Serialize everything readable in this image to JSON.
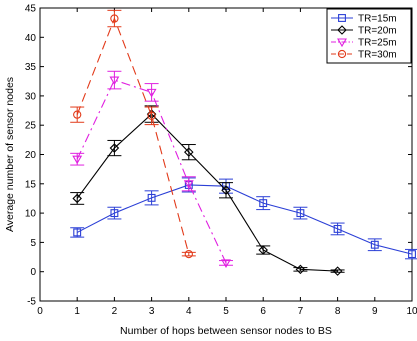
{
  "chart_data": {
    "type": "line",
    "xlabel": "Number of hops between sensor nodes to BS",
    "ylabel": "Average number of sensor nodes",
    "xlim": [
      0,
      10
    ],
    "ylim": [
      -5,
      45
    ],
    "xticks": [
      0,
      1,
      2,
      3,
      4,
      5,
      6,
      7,
      8,
      9,
      10
    ],
    "yticks": [
      -5,
      0,
      5,
      10,
      15,
      20,
      25,
      30,
      35,
      40,
      45
    ],
    "grid": false,
    "legend_position": "top-right",
    "series": [
      {
        "name": "TR=15m",
        "color": "#2b3fd6",
        "line_style": "solid",
        "marker": "square",
        "x": [
          1,
          2,
          3,
          4,
          5,
          6,
          7,
          8,
          9,
          10
        ],
        "y": [
          6.7,
          10.0,
          12.6,
          14.8,
          14.6,
          11.7,
          10.0,
          7.3,
          4.6,
          3.0
        ],
        "err": [
          0.8,
          1.0,
          1.2,
          1.2,
          1.2,
          1.1,
          1.0,
          1.0,
          1.0,
          0.8
        ]
      },
      {
        "name": "TR=20m",
        "color": "#000000",
        "line_style": "solid",
        "marker": "diamond",
        "x": [
          1,
          2,
          3,
          4,
          5,
          6,
          7,
          8
        ],
        "y": [
          12.5,
          21.1,
          26.9,
          20.4,
          13.9,
          3.7,
          0.4,
          0.1
        ],
        "err": [
          1.0,
          1.3,
          1.4,
          1.3,
          1.3,
          0.7,
          0.3,
          0.2
        ]
      },
      {
        "name": "TR=25m",
        "color": "#e020e0",
        "line_style": "dashdot",
        "marker": "triangle-down",
        "x": [
          1,
          2,
          3,
          4,
          5
        ],
        "y": [
          19.2,
          32.7,
          30.6,
          15.0,
          1.5
        ],
        "err": [
          1.0,
          1.5,
          1.5,
          1.2,
          0.4
        ]
      },
      {
        "name": "TR=30m",
        "color": "#e23a1a",
        "line_style": "dashed",
        "marker": "circle",
        "x": [
          1,
          2,
          3,
          4
        ],
        "y": [
          26.8,
          43.2,
          26.6,
          3.0
        ],
        "err": [
          1.3,
          1.4,
          1.5,
          0.3
        ]
      }
    ]
  }
}
